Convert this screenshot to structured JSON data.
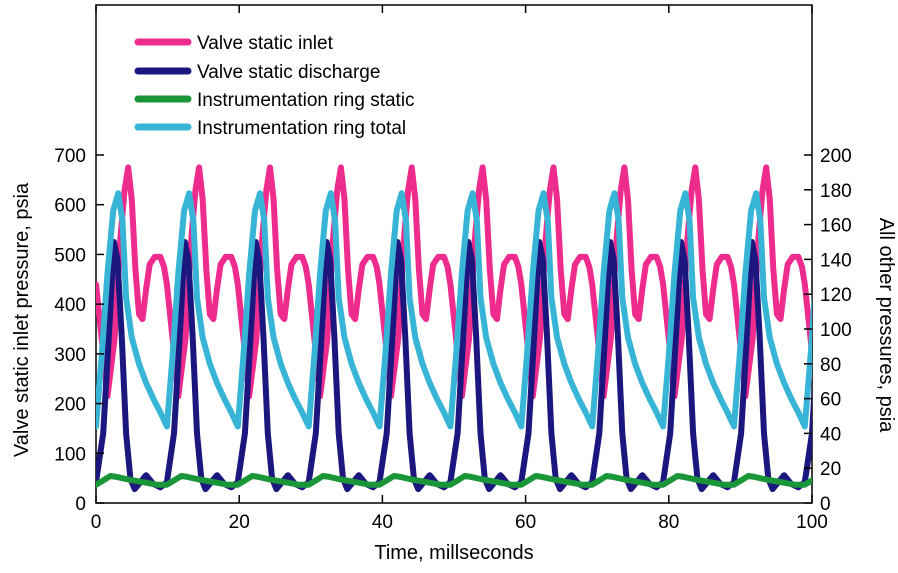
{
  "chart_data": {
    "type": "line",
    "title": "",
    "xlabel": "Time, millseconds",
    "ylabel_left": "Valve static inlet pressure, psia",
    "ylabel_right": "All other pressures, psia",
    "xlim": [
      0,
      100
    ],
    "ylim_left": [
      0,
      700
    ],
    "ylim_right": [
      0,
      200
    ],
    "x_ticks": [
      0,
      20,
      40,
      60,
      80,
      100
    ],
    "y_ticks_left": [
      0,
      100,
      200,
      300,
      400,
      500,
      600,
      700
    ],
    "y_ticks_right": [
      0,
      20,
      40,
      60,
      80,
      100,
      120,
      140,
      160,
      180,
      200
    ],
    "grid": false,
    "legend_position": "top-left",
    "cycle_period_ms": 9.9,
    "series": [
      {
        "name": "Valve static inlet",
        "axis": "left",
        "color": "#ee2c8e",
        "cycle_x": [
          0.0,
          0.8,
          1.6,
          2.6,
          3.4,
          4.0,
          4.5,
          5.0,
          5.5,
          6.0,
          6.5,
          7.0,
          7.5,
          8.2,
          9.0,
          9.5,
          9.9
        ],
        "cycle_y": [
          440,
          330,
          215,
          330,
          530,
          630,
          675,
          610,
          470,
          380,
          370,
          430,
          480,
          495,
          495,
          475,
          440
        ]
      },
      {
        "name": "Valve static discharge",
        "axis": "right",
        "color": "#1c177f",
        "cycle_x": [
          0.0,
          1.0,
          2.0,
          2.5,
          3.0,
          3.6,
          4.2,
          4.8,
          5.4,
          6.2,
          7.0,
          8.0,
          9.0,
          9.9
        ],
        "cycle_y": [
          12,
          40,
          110,
          150,
          140,
          95,
          40,
          14,
          8,
          12,
          16,
          11,
          9,
          12
        ]
      },
      {
        "name": "Instrumentation ring static",
        "axis": "right",
        "color": "#1a9639",
        "cycle_x": [
          0.0,
          1.0,
          2.0,
          2.9,
          4.5,
          6.5,
          8.5,
          9.9
        ],
        "cycle_y": [
          10.5,
          13,
          15.5,
          15,
          13.5,
          12,
          10.5,
          10.5
        ]
      },
      {
        "name": "Instrumentation ring total",
        "axis": "right",
        "color": "#38b4d6",
        "cycle_x": [
          0.0,
          0.8,
          1.6,
          2.4,
          3.1,
          3.7,
          4.2,
          5.0,
          6.0,
          7.0,
          8.0,
          9.0,
          9.9
        ],
        "cycle_y": [
          44,
          85,
          132,
          168,
          178,
          162,
          118,
          95,
          80,
          69,
          60,
          52,
          44
        ]
      }
    ]
  }
}
